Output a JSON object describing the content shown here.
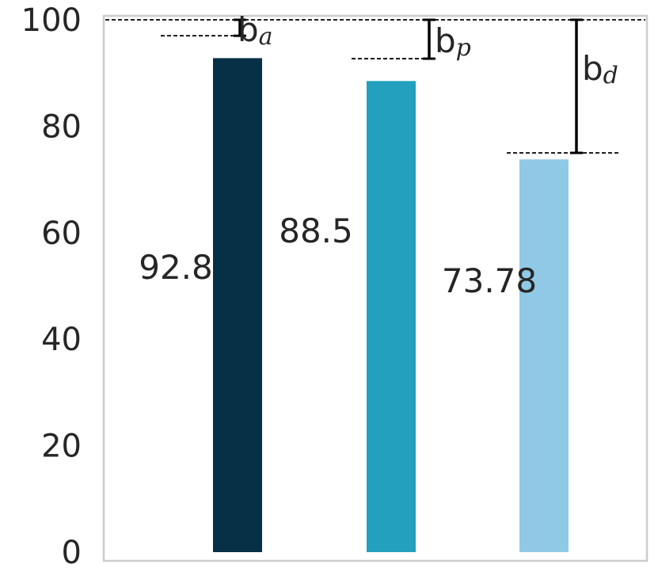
{
  "chart_data": {
    "type": "bar",
    "categories": [
      "",
      "",
      ""
    ],
    "values": [
      92.8,
      88.5,
      73.78
    ],
    "value_labels": [
      "92.8",
      "88.5",
      "73.78"
    ],
    "colors": [
      "#053045",
      "#22a0be",
      "#90c9e6"
    ],
    "ylim": [
      0,
      102
    ],
    "yticks": [
      0,
      20,
      40,
      60,
      80,
      100
    ],
    "reference_line": 100,
    "grid": false,
    "annotations": [
      {
        "base": "b",
        "sub": "a",
        "from": 97,
        "to": 100
      },
      {
        "base": "b",
        "sub": "p",
        "from": 92.7,
        "to": 100
      },
      {
        "base": "b",
        "sub": "d",
        "from": 75,
        "to": 100
      }
    ]
  }
}
